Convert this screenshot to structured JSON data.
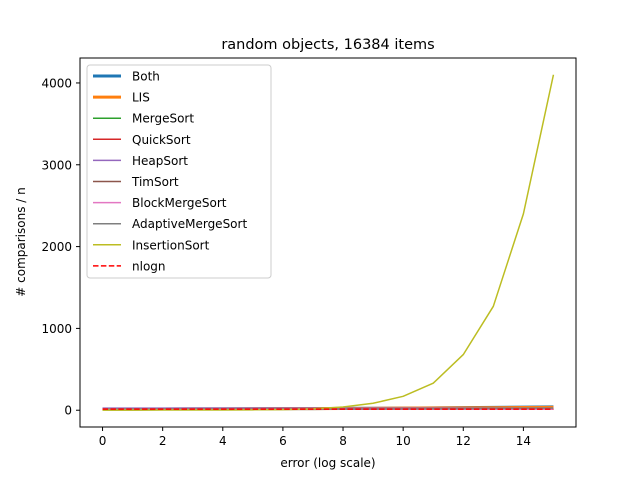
{
  "chart_data": {
    "type": "line",
    "title": "random objects, 16384 items",
    "xlabel": "error (log scale)",
    "ylabel": "# comparisons / n",
    "xlim": [
      -0.75,
      15.75
    ],
    "ylim": [
      -205,
      4305
    ],
    "xticks": [
      0,
      2,
      4,
      6,
      8,
      10,
      12,
      14
    ],
    "yticks": [
      0,
      1000,
      2000,
      3000,
      4000
    ],
    "grid": false,
    "legend_position": "top-left",
    "x": [
      0,
      1,
      2,
      3,
      4,
      5,
      6,
      7,
      8,
      9,
      10,
      11,
      12,
      13,
      14,
      15
    ],
    "series": [
      {
        "name": "Both",
        "color": "#1f77b4",
        "style": "solid-thick",
        "values": [
          13,
          14,
          15,
          16,
          17,
          18,
          19,
          20,
          22,
          24,
          26,
          29,
          32,
          35,
          38,
          41
        ]
      },
      {
        "name": "LIS",
        "color": "#ff7f0e",
        "style": "solid-thick",
        "values": [
          13,
          14,
          15,
          16,
          17,
          18,
          19,
          20,
          21,
          23,
          25,
          27,
          29,
          31,
          33,
          35
        ]
      },
      {
        "name": "MergeSort",
        "color": "#2ca02c",
        "style": "solid",
        "values": [
          13,
          13,
          13,
          13,
          13,
          13,
          13,
          13,
          13,
          13,
          13,
          13,
          13,
          13,
          13,
          13
        ]
      },
      {
        "name": "QuickSort",
        "color": "#d62728",
        "style": "solid",
        "values": [
          16,
          16,
          16,
          16,
          16,
          16,
          16,
          16,
          16,
          16,
          16,
          16,
          16,
          16,
          16,
          16
        ]
      },
      {
        "name": "HeapSort",
        "color": "#9467bd",
        "style": "solid",
        "values": [
          25,
          25,
          25,
          25,
          25,
          25,
          25,
          25,
          25,
          25,
          25,
          25,
          25,
          25,
          25,
          25
        ]
      },
      {
        "name": "TimSort",
        "color": "#8c564b",
        "style": "solid",
        "values": [
          13,
          13,
          13,
          13,
          13,
          13,
          13,
          13,
          13,
          13,
          13,
          13,
          13,
          13,
          13,
          13
        ]
      },
      {
        "name": "BlockMergeSort",
        "color": "#e377c2",
        "style": "solid",
        "values": [
          14,
          14,
          14,
          14,
          14,
          14,
          14,
          14,
          14,
          14,
          14,
          14,
          14,
          14,
          14,
          14
        ]
      },
      {
        "name": "AdaptiveMergeSort",
        "color": "#7f7f7f",
        "style": "solid",
        "values": [
          13,
          13,
          13,
          13,
          13,
          13,
          13,
          13,
          14,
          15,
          16,
          18,
          20,
          22,
          24,
          26
        ]
      },
      {
        "name": "InsertionSort",
        "color": "#bcbd22",
        "style": "solid",
        "values": [
          1,
          1,
          2,
          2,
          3,
          5,
          8,
          16,
          40,
          85,
          170,
          330,
          680,
          1270,
          2400,
          4100
        ]
      },
      {
        "name": "nlogn",
        "color": "#ff0000",
        "style": "dashed",
        "values": [
          14,
          14,
          14,
          14,
          14,
          14,
          14,
          14,
          14,
          14,
          14,
          14,
          14,
          14,
          14,
          14
        ]
      }
    ]
  }
}
